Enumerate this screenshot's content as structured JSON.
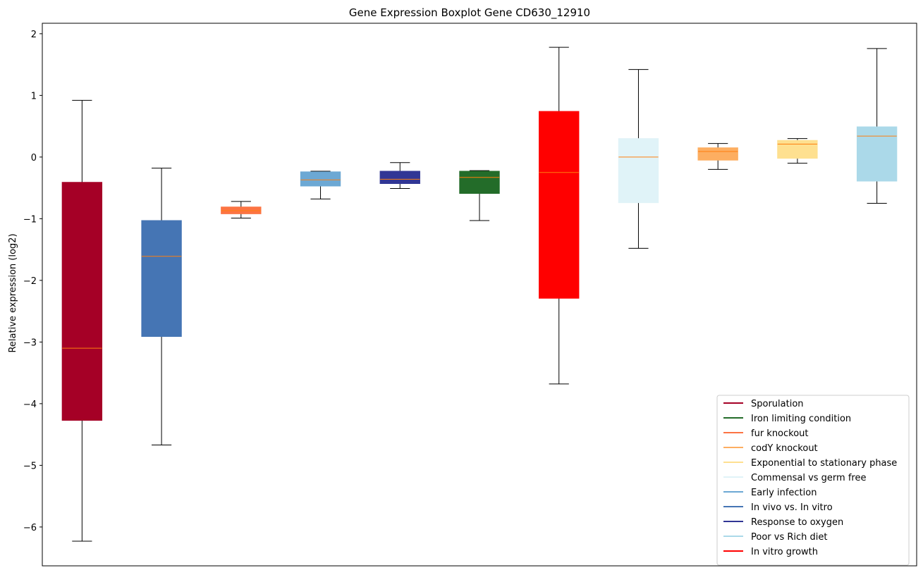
{
  "chart_data": {
    "type": "box",
    "title": "Gene Expression Boxplot Gene CD630_12910",
    "xlabel": "",
    "ylabel": "Relative expression (log2)",
    "ylim": [
      -6.63,
      2.17
    ],
    "yticks": [
      2,
      1,
      0,
      -1,
      -2,
      -3,
      -4,
      -5,
      -6
    ],
    "ytick_labels": [
      "2",
      "1",
      "0",
      "−1",
      "−2",
      "−3",
      "−4",
      "−5",
      "−6"
    ],
    "grid": false,
    "legend_position": "lower-right",
    "median_color": "#ff7f0e",
    "boxes": [
      {
        "color": "#a50026",
        "whislo": -6.23,
        "q1": -4.27,
        "med": -3.1,
        "q3": -0.41,
        "whishi": 0.92
      },
      {
        "color": "#4575b4",
        "whislo": -4.67,
        "q1": -2.91,
        "med": -1.61,
        "q3": -1.03,
        "whishi": -0.18
      },
      {
        "color": "#fc7443",
        "whislo": -0.99,
        "q1": -0.92,
        "med": -0.87,
        "q3": -0.81,
        "whishi": -0.72
      },
      {
        "color": "#6ca8d4",
        "whislo": -0.68,
        "q1": -0.47,
        "med": -0.37,
        "q3": -0.24,
        "whishi": -0.23
      },
      {
        "color": "#313695",
        "whislo": -0.51,
        "q1": -0.43,
        "med": -0.36,
        "q3": -0.23,
        "whishi": -0.09
      },
      {
        "color": "#236c29",
        "whislo": -1.03,
        "q1": -0.59,
        "med": -0.33,
        "q3": -0.23,
        "whishi": -0.22
      },
      {
        "color": "#ff0000",
        "whislo": -3.68,
        "q1": -2.29,
        "med": -0.25,
        "q3": 0.74,
        "whishi": 1.78
      },
      {
        "color": "#e0f3f8",
        "whislo": -1.48,
        "q1": -0.74,
        "med": 0.0,
        "q3": 0.3,
        "whishi": 1.42
      },
      {
        "color": "#fdae61",
        "whislo": -0.2,
        "q1": -0.05,
        "med": 0.09,
        "q3": 0.15,
        "whishi": 0.22
      },
      {
        "color": "#fee090",
        "whislo": -0.1,
        "q1": -0.02,
        "med": 0.21,
        "q3": 0.27,
        "whishi": 0.3
      },
      {
        "color": "#abd9e9",
        "whislo": -0.75,
        "q1": -0.39,
        "med": 0.34,
        "q3": 0.49,
        "whishi": 1.76
      }
    ],
    "legend": [
      {
        "label": "Sporulation",
        "color": "#a50026"
      },
      {
        "label": "Iron limiting condition",
        "color": "#236c29"
      },
      {
        "label": "fur knockout",
        "color": "#fc7443"
      },
      {
        "label": "codY knockout",
        "color": "#fdae61"
      },
      {
        "label": "Exponential to stationary phase",
        "color": "#fee090"
      },
      {
        "label": "Commensal vs germ free",
        "color": "#e0f3f8"
      },
      {
        "label": "Early infection",
        "color": "#6ca8d4"
      },
      {
        "label": "In vivo vs. In vitro",
        "color": "#4575b4"
      },
      {
        "label": "Response to oxygen",
        "color": "#313695"
      },
      {
        "label": "Poor vs Rich diet",
        "color": "#abd9e9"
      },
      {
        "label": "In vitro growth",
        "color": "#ff0000"
      }
    ]
  }
}
